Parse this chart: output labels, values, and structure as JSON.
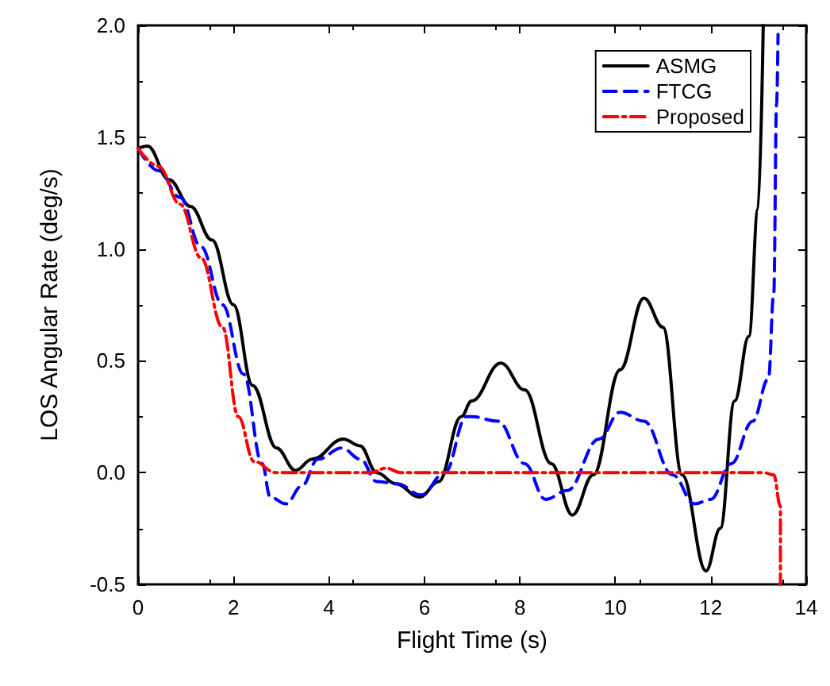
{
  "chart_data": {
    "type": "line",
    "xlabel": "Flight Time (s)",
    "ylabel": "LOS Angular Rate (deg/s)",
    "xlim": [
      0,
      14
    ],
    "xticks": [
      0,
      2,
      4,
      6,
      8,
      10,
      12,
      14
    ],
    "ylim": [
      -0.5,
      2.0
    ],
    "yticks": [
      {
        "value": -0.5,
        "label": "-0.5"
      },
      {
        "value": 0,
        "label": "0.0"
      },
      {
        "value": 0.5,
        "label": "0.5"
      },
      {
        "value": 1,
        "label": "1.0"
      },
      {
        "value": 1.5,
        "label": "1.5"
      },
      {
        "value": 2,
        "label": "2.0"
      }
    ],
    "grid": false,
    "legend": "top right",
    "marker": "none",
    "series": [
      {
        "name": "ASMG",
        "color": "#000000",
        "line_style": "solid",
        "x": [
          0,
          0.2,
          0.65,
          1.1,
          1.55,
          2.0,
          2.4,
          2.9,
          3.3,
          3.65,
          4.3,
          4.65,
          5.0,
          5.4,
          5.9,
          6.3,
          6.77,
          6.99,
          7.6,
          8.1,
          8.66,
          9.1,
          9.54,
          10.1,
          10.6,
          11.0,
          11.4,
          11.9,
          12.2,
          12.5,
          12.8,
          12.99,
          13.1
        ],
        "values": [
          1.45,
          1.46,
          1.31,
          1.19,
          1.04,
          0.75,
          0.39,
          0.11,
          0.01,
          0.06,
          0.15,
          0.12,
          0,
          -0.05,
          -0.11,
          -0.04,
          0.25,
          0.32,
          0.49,
          0.37,
          0.04,
          -0.19,
          -0.01,
          0.46,
          0.78,
          0.65,
          -0.01,
          -0.44,
          -0.25,
          0.32,
          0.61,
          1.18,
          2.0
        ]
      },
      {
        "name": "FTCG",
        "color": "#0000ff",
        "line_style": "dashed",
        "x": [
          0,
          0.43,
          0.88,
          1.32,
          1.77,
          2.21,
          2.6,
          2.77,
          3.1,
          3.43,
          3.77,
          4.27,
          4.66,
          5.0,
          5.43,
          5.93,
          6.43,
          6.88,
          6.99,
          7.54,
          8.1,
          8.54,
          8.99,
          9.66,
          10.1,
          10.6,
          11.2,
          11.66,
          12.0,
          12.43,
          12.88,
          13.21,
          13.32,
          13.38,
          13.41
        ],
        "values": [
          1.45,
          1.35,
          1.23,
          1.01,
          0.75,
          0.44,
          0.04,
          -0.11,
          -0.14,
          -0.06,
          0.06,
          0.11,
          0.06,
          -0.04,
          -0.05,
          -0.1,
          0,
          0.25,
          0.25,
          0.23,
          0.04,
          -0.12,
          -0.08,
          0.15,
          0.27,
          0.23,
          -0.01,
          -0.14,
          -0.12,
          0.04,
          0.23,
          0.42,
          0.8,
          1.65,
          1.96
        ]
      },
      {
        "name": "Proposed",
        "color": "#ff0000",
        "line_style": "dashdot",
        "x": [
          0,
          0.43,
          0.88,
          1.32,
          1.77,
          2.1,
          2.43,
          2.88,
          4.88,
          5.2,
          5.5,
          13.1,
          13.32,
          13.46,
          13.46
        ],
        "values": [
          1.45,
          1.37,
          1.2,
          0.96,
          0.65,
          0.25,
          0.05,
          0,
          0,
          0.02,
          0,
          0,
          -0.01,
          -0.15,
          -0.5
        ]
      }
    ]
  }
}
